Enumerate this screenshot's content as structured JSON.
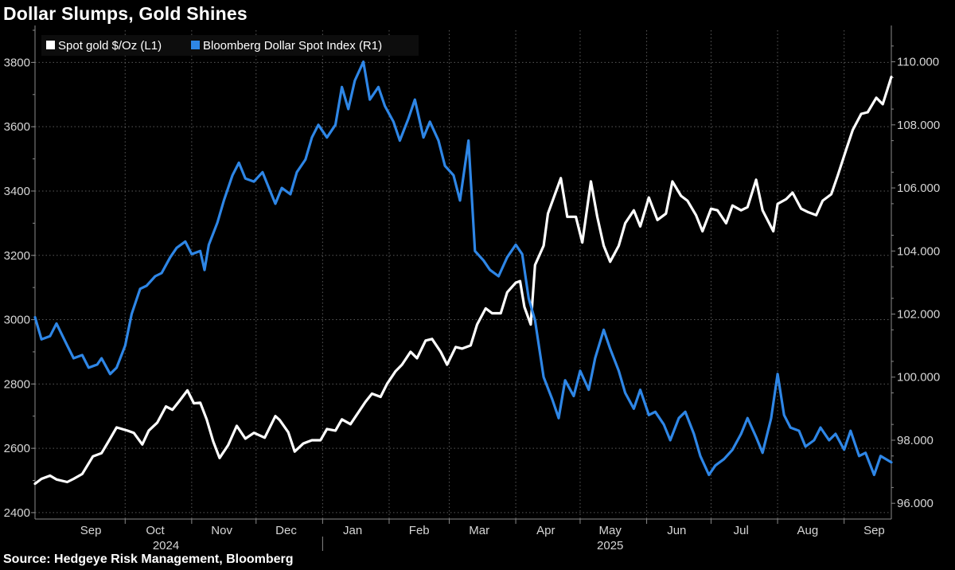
{
  "title": "Dollar Slumps, Gold Shines",
  "source": "Source: Hedgeye Risk Management, Bloomberg",
  "colors": {
    "gold": "#ffffff",
    "dollar": "#2e86e6",
    "grid": "#5a5a5a",
    "axis": "#8a8a8a"
  },
  "chart_data": {
    "type": "line",
    "legend": [
      "Spot gold $/Oz (L1)",
      "Bloomberg Dollar Spot Index (R1)"
    ],
    "legend_placement": "top-left",
    "grid": true,
    "x_start": "2024-08-20",
    "x_end": "2025-09-23",
    "month_ticks": [
      {
        "label": "Sep",
        "date": "2024-09-15"
      },
      {
        "label": "Oct",
        "date": "2024-10-15"
      },
      {
        "label": "Nov",
        "date": "2024-11-15"
      },
      {
        "label": "Dec",
        "date": "2024-12-15"
      },
      {
        "label": "Jan",
        "date": "2025-01-15"
      },
      {
        "label": "Feb",
        "date": "2025-02-15"
      },
      {
        "label": "Mar",
        "date": "2025-03-15"
      },
      {
        "label": "Apr",
        "date": "2025-04-15"
      },
      {
        "label": "May",
        "date": "2025-05-15"
      },
      {
        "label": "Jun",
        "date": "2025-06-15"
      },
      {
        "label": "Jul",
        "date": "2025-07-15"
      },
      {
        "label": "Aug",
        "date": "2025-08-15"
      },
      {
        "label": "Sep",
        "date": "2025-09-15"
      }
    ],
    "month_gridlines": [
      "2024-10-01",
      "2024-11-01",
      "2024-12-01",
      "2025-01-01",
      "2025-02-01",
      "2025-03-01",
      "2025-04-01",
      "2025-05-01",
      "2025-06-01",
      "2025-07-01",
      "2025-08-01",
      "2025-09-01"
    ],
    "year_labels": [
      {
        "label": "2024",
        "date": "2024-10-20"
      },
      {
        "label": "2025",
        "date": "2025-05-15"
      }
    ],
    "year_divider": "2025-01-01",
    "y_left": {
      "min": 2380,
      "max": 3900,
      "ticks": [
        2400,
        2600,
        2800,
        3000,
        3200,
        3400,
        3600,
        3800
      ]
    },
    "y_right": {
      "min": 95.5,
      "max": 111.0,
      "ticks": [
        "96.000",
        "98.000",
        "100.000",
        "102.000",
        "104.000",
        "106.000",
        "108.000",
        "110.000"
      ]
    },
    "series": [
      {
        "name": "Spot gold $/Oz (L1)",
        "axis": "left",
        "points": [
          [
            "2024-08-20",
            2490
          ],
          [
            "2024-08-23",
            2505
          ],
          [
            "2024-08-27",
            2515
          ],
          [
            "2024-08-30",
            2503
          ],
          [
            "2024-09-04",
            2495
          ],
          [
            "2024-09-07",
            2505
          ],
          [
            "2024-09-11",
            2520
          ],
          [
            "2024-09-16",
            2575
          ],
          [
            "2024-09-20",
            2585
          ],
          [
            "2024-09-24",
            2630
          ],
          [
            "2024-09-27",
            2665
          ],
          [
            "2024-10-02",
            2655
          ],
          [
            "2024-10-05",
            2648
          ],
          [
            "2024-10-09",
            2612
          ],
          [
            "2024-10-12",
            2655
          ],
          [
            "2024-10-16",
            2680
          ],
          [
            "2024-10-20",
            2730
          ],
          [
            "2024-10-23",
            2720
          ],
          [
            "2024-10-26",
            2745
          ],
          [
            "2024-10-30",
            2780
          ],
          [
            "2024-11-02",
            2740
          ],
          [
            "2024-11-05",
            2742
          ],
          [
            "2024-11-08",
            2690
          ],
          [
            "2024-11-11",
            2622
          ],
          [
            "2024-11-14",
            2570
          ],
          [
            "2024-11-18",
            2610
          ],
          [
            "2024-11-22",
            2670
          ],
          [
            "2024-11-26",
            2630
          ],
          [
            "2024-11-30",
            2648
          ],
          [
            "2024-12-05",
            2633
          ],
          [
            "2024-12-10",
            2700
          ],
          [
            "2024-12-12",
            2688
          ],
          [
            "2024-12-16",
            2650
          ],
          [
            "2024-12-19",
            2590
          ],
          [
            "2024-12-23",
            2615
          ],
          [
            "2024-12-27",
            2625
          ],
          [
            "2024-12-31",
            2625
          ],
          [
            "2025-01-03",
            2660
          ],
          [
            "2025-01-07",
            2655
          ],
          [
            "2025-01-10",
            2690
          ],
          [
            "2025-01-14",
            2675
          ],
          [
            "2025-01-17",
            2705
          ],
          [
            "2025-01-21",
            2745
          ],
          [
            "2025-01-24",
            2770
          ],
          [
            "2025-01-28",
            2760
          ],
          [
            "2025-01-31",
            2800
          ],
          [
            "2025-02-04",
            2840
          ],
          [
            "2025-02-07",
            2860
          ],
          [
            "2025-02-11",
            2900
          ],
          [
            "2025-02-14",
            2880
          ],
          [
            "2025-02-18",
            2935
          ],
          [
            "2025-02-21",
            2940
          ],
          [
            "2025-02-25",
            2900
          ],
          [
            "2025-02-28",
            2860
          ],
          [
            "2025-03-04",
            2915
          ],
          [
            "2025-03-07",
            2910
          ],
          [
            "2025-03-11",
            2920
          ],
          [
            "2025-03-14",
            2985
          ],
          [
            "2025-03-18",
            3035
          ],
          [
            "2025-03-21",
            3020
          ],
          [
            "2025-03-25",
            3020
          ],
          [
            "2025-03-28",
            3085
          ],
          [
            "2025-04-01",
            3115
          ],
          [
            "2025-04-03",
            3120
          ],
          [
            "2025-04-05",
            3040
          ],
          [
            "2025-04-08",
            2985
          ],
          [
            "2025-04-10",
            3170
          ],
          [
            "2025-04-14",
            3230
          ],
          [
            "2025-04-16",
            3330
          ],
          [
            "2025-04-22",
            3440
          ],
          [
            "2025-04-25",
            3320
          ],
          [
            "2025-04-29",
            3320
          ],
          [
            "2025-05-02",
            3240
          ],
          [
            "2025-05-06",
            3430
          ],
          [
            "2025-05-09",
            3320
          ],
          [
            "2025-05-12",
            3230
          ],
          [
            "2025-05-15",
            3180
          ],
          [
            "2025-05-19",
            3230
          ],
          [
            "2025-05-22",
            3300
          ],
          [
            "2025-05-26",
            3340
          ],
          [
            "2025-05-29",
            3290
          ],
          [
            "2025-06-02",
            3380
          ],
          [
            "2025-06-06",
            3310
          ],
          [
            "2025-06-10",
            3330
          ],
          [
            "2025-06-13",
            3430
          ],
          [
            "2025-06-17",
            3385
          ],
          [
            "2025-06-20",
            3370
          ],
          [
            "2025-06-24",
            3325
          ],
          [
            "2025-06-27",
            3275
          ],
          [
            "2025-07-01",
            3345
          ],
          [
            "2025-07-04",
            3340
          ],
          [
            "2025-07-08",
            3300
          ],
          [
            "2025-07-11",
            3355
          ],
          [
            "2025-07-15",
            3340
          ],
          [
            "2025-07-18",
            3350
          ],
          [
            "2025-07-22",
            3435
          ],
          [
            "2025-07-25",
            3340
          ],
          [
            "2025-07-30",
            3275
          ],
          [
            "2025-08-01",
            3360
          ],
          [
            "2025-08-05",
            3375
          ],
          [
            "2025-08-08",
            3395
          ],
          [
            "2025-08-12",
            3345
          ],
          [
            "2025-08-15",
            3335
          ],
          [
            "2025-08-19",
            3325
          ],
          [
            "2025-08-22",
            3370
          ],
          [
            "2025-08-26",
            3390
          ],
          [
            "2025-08-29",
            3448
          ],
          [
            "2025-09-02",
            3530
          ],
          [
            "2025-09-05",
            3590
          ],
          [
            "2025-09-09",
            3640
          ],
          [
            "2025-09-12",
            3645
          ],
          [
            "2025-09-16",
            3690
          ],
          [
            "2025-09-19",
            3670
          ],
          [
            "2025-09-23",
            3755
          ]
        ]
      },
      {
        "name": "Bloomberg Dollar Spot Index (R1)",
        "axis": "right",
        "points": [
          [
            "2024-08-20",
            101.9
          ],
          [
            "2024-08-23",
            101.2
          ],
          [
            "2024-08-27",
            101.3
          ],
          [
            "2024-08-30",
            101.7
          ],
          [
            "2024-09-04",
            101.0
          ],
          [
            "2024-09-07",
            100.6
          ],
          [
            "2024-09-11",
            100.7
          ],
          [
            "2024-09-14",
            100.3
          ],
          [
            "2024-09-18",
            100.4
          ],
          [
            "2024-09-20",
            100.6
          ],
          [
            "2024-09-24",
            100.1
          ],
          [
            "2024-09-27",
            100.3
          ],
          [
            "2024-10-01",
            101.0
          ],
          [
            "2024-10-04",
            102.0
          ],
          [
            "2024-10-08",
            102.8
          ],
          [
            "2024-10-11",
            102.9
          ],
          [
            "2024-10-15",
            103.2
          ],
          [
            "2024-10-18",
            103.3
          ],
          [
            "2024-10-22",
            103.8
          ],
          [
            "2024-10-25",
            104.1
          ],
          [
            "2024-10-29",
            104.3
          ],
          [
            "2024-11-01",
            103.9
          ],
          [
            "2024-11-05",
            104.0
          ],
          [
            "2024-11-07",
            103.4
          ],
          [
            "2024-11-09",
            104.2
          ],
          [
            "2024-11-13",
            104.9
          ],
          [
            "2024-11-16",
            105.6
          ],
          [
            "2024-11-20",
            106.4
          ],
          [
            "2024-11-23",
            106.8
          ],
          [
            "2024-11-26",
            106.3
          ],
          [
            "2024-11-30",
            106.2
          ],
          [
            "2024-12-04",
            106.5
          ],
          [
            "2024-12-07",
            106.0
          ],
          [
            "2024-12-10",
            105.5
          ],
          [
            "2024-12-13",
            106.0
          ],
          [
            "2024-12-17",
            105.8
          ],
          [
            "2024-12-20",
            106.5
          ],
          [
            "2024-12-24",
            106.9
          ],
          [
            "2024-12-27",
            107.6
          ],
          [
            "2024-12-30",
            108.0
          ],
          [
            "2025-01-03",
            107.6
          ],
          [
            "2025-01-07",
            108.0
          ],
          [
            "2025-01-10",
            109.2
          ],
          [
            "2025-01-13",
            108.5
          ],
          [
            "2025-01-16",
            109.4
          ],
          [
            "2025-01-20",
            110.0
          ],
          [
            "2025-01-23",
            108.8
          ],
          [
            "2025-01-27",
            109.2
          ],
          [
            "2025-01-30",
            108.6
          ],
          [
            "2025-02-03",
            108.1
          ],
          [
            "2025-02-06",
            107.5
          ],
          [
            "2025-02-10",
            108.2
          ],
          [
            "2025-02-13",
            108.8
          ],
          [
            "2025-02-17",
            107.6
          ],
          [
            "2025-02-20",
            108.1
          ],
          [
            "2025-02-24",
            107.5
          ],
          [
            "2025-02-27",
            106.7
          ],
          [
            "2025-03-03",
            106.4
          ],
          [
            "2025-03-06",
            105.6
          ],
          [
            "2025-03-10",
            107.5
          ],
          [
            "2025-03-13",
            104.0
          ],
          [
            "2025-03-17",
            103.7
          ],
          [
            "2025-03-20",
            103.4
          ],
          [
            "2025-03-24",
            103.2
          ],
          [
            "2025-03-28",
            103.8
          ],
          [
            "2025-04-01",
            104.2
          ],
          [
            "2025-04-04",
            103.9
          ],
          [
            "2025-04-07",
            102.5
          ],
          [
            "2025-04-10",
            101.8
          ],
          [
            "2025-04-14",
            100.0
          ],
          [
            "2025-04-18",
            99.3
          ],
          [
            "2025-04-21",
            98.7
          ],
          [
            "2025-04-24",
            99.9
          ],
          [
            "2025-04-28",
            99.4
          ],
          [
            "2025-05-01",
            100.2
          ],
          [
            "2025-05-05",
            99.6
          ],
          [
            "2025-05-08",
            100.6
          ],
          [
            "2025-05-12",
            101.5
          ],
          [
            "2025-05-15",
            100.9
          ],
          [
            "2025-05-19",
            100.2
          ],
          [
            "2025-05-22",
            99.5
          ],
          [
            "2025-05-26",
            99.0
          ],
          [
            "2025-05-29",
            99.6
          ],
          [
            "2025-06-02",
            98.8
          ],
          [
            "2025-06-05",
            98.9
          ],
          [
            "2025-06-09",
            98.5
          ],
          [
            "2025-06-12",
            98.0
          ],
          [
            "2025-06-16",
            98.7
          ],
          [
            "2025-06-19",
            98.9
          ],
          [
            "2025-06-23",
            98.2
          ],
          [
            "2025-06-26",
            97.5
          ],
          [
            "2025-06-30",
            96.9
          ],
          [
            "2025-07-03",
            97.2
          ],
          [
            "2025-07-07",
            97.4
          ],
          [
            "2025-07-11",
            97.7
          ],
          [
            "2025-07-15",
            98.2
          ],
          [
            "2025-07-18",
            98.7
          ],
          [
            "2025-07-22",
            98.1
          ],
          [
            "2025-07-25",
            97.6
          ],
          [
            "2025-07-29",
            98.7
          ],
          [
            "2025-08-01",
            100.1
          ],
          [
            "2025-08-04",
            98.8
          ],
          [
            "2025-08-07",
            98.4
          ],
          [
            "2025-08-11",
            98.3
          ],
          [
            "2025-08-14",
            97.8
          ],
          [
            "2025-08-18",
            98.0
          ],
          [
            "2025-08-21",
            98.4
          ],
          [
            "2025-08-25",
            98.0
          ],
          [
            "2025-08-28",
            98.2
          ],
          [
            "2025-09-01",
            97.7
          ],
          [
            "2025-09-04",
            98.3
          ],
          [
            "2025-09-08",
            97.5
          ],
          [
            "2025-09-11",
            97.6
          ],
          [
            "2025-09-15",
            96.9
          ],
          [
            "2025-09-18",
            97.5
          ],
          [
            "2025-09-23",
            97.3
          ]
        ]
      }
    ]
  }
}
